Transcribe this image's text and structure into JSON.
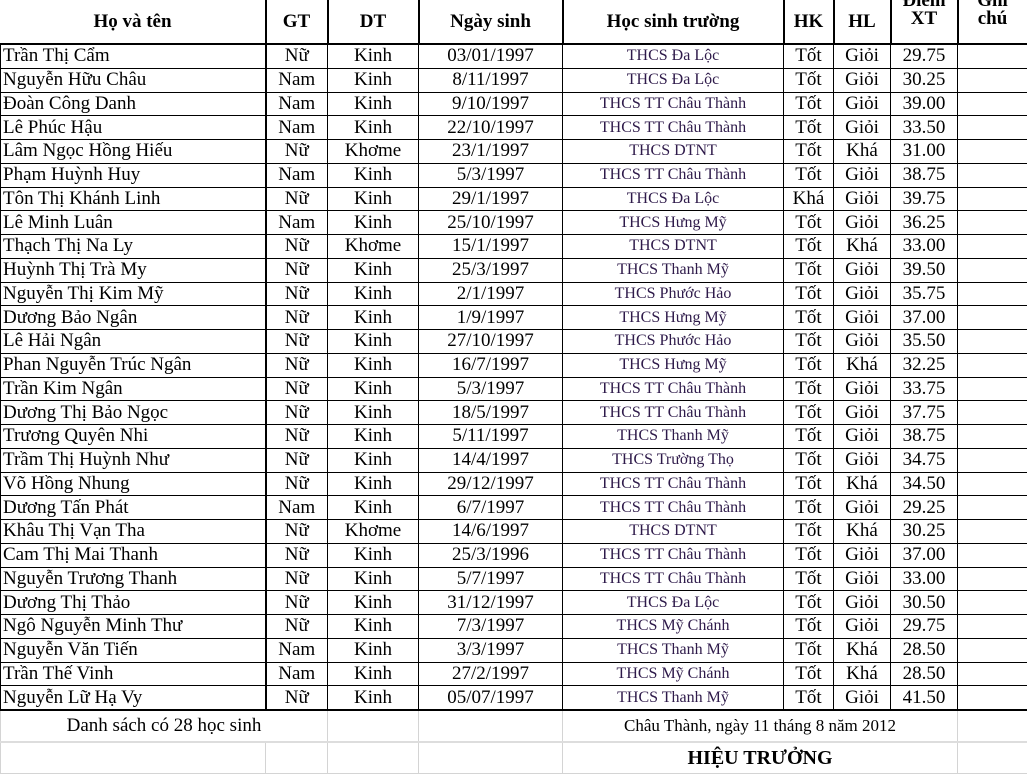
{
  "headers": [
    "Họ và tên",
    "GT",
    "DT",
    "Ngày sinh",
    "Học sinh trường",
    "HK",
    "HL",
    "Điểm XT",
    "Ghi chú"
  ],
  "rows": [
    [
      "Trần Thị Cẩm",
      "Nữ",
      "Kinh",
      "03/01/1997",
      "THCS Đa Lộc",
      "Tốt",
      "Giỏi",
      "29.75",
      ""
    ],
    [
      "Nguyễn Hữu Châu",
      "Nam",
      "Kinh",
      "8/11/1997",
      "THCS Đa Lộc",
      "Tốt",
      "Giỏi",
      "30.25",
      ""
    ],
    [
      "Đoàn Công Danh",
      "Nam",
      "Kinh",
      "9/10/1997",
      "THCS TT Châu Thành",
      "Tốt",
      "Giỏi",
      "39.00",
      ""
    ],
    [
      "Lê Phúc Hậu",
      "Nam",
      "Kinh",
      "22/10/1997",
      "THCS TT Châu Thành",
      "Tốt",
      "Giỏi",
      "33.50",
      ""
    ],
    [
      "Lâm Ngọc Hồng Hiếu",
      "Nữ",
      "Khơme",
      "23/1/1997",
      "THCS DTNT",
      "Tốt",
      "Khá",
      "31.00",
      ""
    ],
    [
      "Phạm Huỳnh Huy",
      "Nam",
      "Kinh",
      "5/3/1997",
      "THCS TT Châu Thành",
      "Tốt",
      "Giỏi",
      "38.75",
      ""
    ],
    [
      "Tôn Thị Khánh Linh",
      "Nữ",
      "Kinh",
      "29/1/1997",
      "THCS Đa Lộc",
      "Khá",
      "Giỏi",
      "39.75",
      ""
    ],
    [
      "Lê Minh Luân",
      "Nam",
      "Kinh",
      "25/10/1997",
      "THCS Hưng Mỹ",
      "Tốt",
      "Giỏi",
      "36.25",
      ""
    ],
    [
      "Thạch Thị Na Ly",
      "Nữ",
      "Khơme",
      "15/1/1997",
      "THCS DTNT",
      "Tốt",
      "Khá",
      "33.00",
      ""
    ],
    [
      "Huỳnh Thị Trà My",
      "Nữ",
      "Kinh",
      "25/3/1997",
      "THCS Thanh Mỹ",
      "Tốt",
      "Giỏi",
      "39.50",
      ""
    ],
    [
      "Nguyễn Thị Kim Mỹ",
      "Nữ",
      "Kinh",
      "2/1/1997",
      "THCS Phước Hảo",
      "Tốt",
      "Giỏi",
      "35.75",
      ""
    ],
    [
      "Dương Bảo Ngân",
      "Nữ",
      "Kinh",
      "1/9/1997",
      "THCS Hưng Mỹ",
      "Tốt",
      "Giỏi",
      "37.00",
      ""
    ],
    [
      "Lê Hải Ngân",
      "Nữ",
      "Kinh",
      "27/10/1997",
      "THCS Phước Hảo",
      "Tốt",
      "Giỏi",
      "35.50",
      ""
    ],
    [
      "Phan Nguyễn Trúc Ngân",
      "Nữ",
      "Kinh",
      "16/7/1997",
      "THCS Hưng Mỹ",
      "Tốt",
      "Khá",
      "32.25",
      ""
    ],
    [
      "Trần Kim Ngân",
      "Nữ",
      "Kinh",
      "5/3/1997",
      "THCS TT Châu Thành",
      "Tốt",
      "Giỏi",
      "33.75",
      ""
    ],
    [
      "Dương Thị Bảo Ngọc",
      "Nữ",
      "Kinh",
      "18/5/1997",
      "THCS TT Châu Thành",
      "Tốt",
      "Giỏi",
      "37.75",
      ""
    ],
    [
      "Trương Quyên Nhi",
      "Nữ",
      "Kinh",
      "5/11/1997",
      "THCS Thanh Mỹ",
      "Tốt",
      "Giỏi",
      "38.75",
      ""
    ],
    [
      "Trầm Thị Huỳnh Như",
      "Nữ",
      "Kinh",
      "14/4/1997",
      "THCS Trường Thọ",
      "Tốt",
      "Giỏi",
      "34.75",
      ""
    ],
    [
      "Võ Hồng Nhung",
      "Nữ",
      "Kinh",
      "29/12/1997",
      "THCS TT Châu Thành",
      "Tốt",
      "Khá",
      "34.50",
      ""
    ],
    [
      "Dương Tấn Phát",
      "Nam",
      "Kinh",
      "6/7/1997",
      "THCS TT Châu Thành",
      "Tốt",
      "Giỏi",
      "29.25",
      ""
    ],
    [
      "Khâu Thị Vạn Tha",
      "Nữ",
      "Khơme",
      "14/6/1997",
      "THCS DTNT",
      "Tốt",
      "Khá",
      "30.25",
      ""
    ],
    [
      "Cam Thị Mai Thanh",
      "Nữ",
      "Kinh",
      "25/3/1996",
      "THCS TT Châu Thành",
      "Tốt",
      "Giỏi",
      "37.00",
      ""
    ],
    [
      "Nguyễn Trương Thanh",
      "Nữ",
      "Kinh",
      "5/7/1997",
      "THCS TT Châu Thành",
      "Tốt",
      "Giỏi",
      "33.00",
      ""
    ],
    [
      "Dương Thị Thảo",
      "Nữ",
      "Kinh",
      "31/12/1997",
      "THCS Đa Lộc",
      "Tốt",
      "Giỏi",
      "30.50",
      ""
    ],
    [
      "Ngô Nguyễn Minh Thư",
      "Nữ",
      "Kinh",
      "7/3/1997",
      "THCS Mỹ Chánh",
      "Tốt",
      "Giỏi",
      "29.75",
      ""
    ],
    [
      "Nguyễn Văn Tiến",
      "Nam",
      "Kinh",
      "3/3/1997",
      "THCS Thanh Mỹ",
      "Tốt",
      "Khá",
      "28.50",
      ""
    ],
    [
      "Trần Thế Vinh",
      "Nam",
      "Kinh",
      "27/2/1997",
      "THCS Mỹ Chánh",
      "Tốt",
      "Khá",
      "28.50",
      ""
    ],
    [
      "Nguyễn Lữ Hạ Vy",
      "Nữ",
      "Kinh",
      "05/07/1997",
      "THCS Thanh Mỹ",
      "Tốt",
      "Giỏi",
      "41.50",
      ""
    ]
  ],
  "footer": {
    "count_text": "Danh sách có 28 học sinh",
    "date_text": "Châu Thành, ngày 11 tháng 8 năm 2012",
    "signer": "HIỆU TRƯỞNG"
  },
  "colors": {
    "school_text": "#2e1a4a",
    "grid": "#000000",
    "light_grid": "#d4d4d4"
  }
}
